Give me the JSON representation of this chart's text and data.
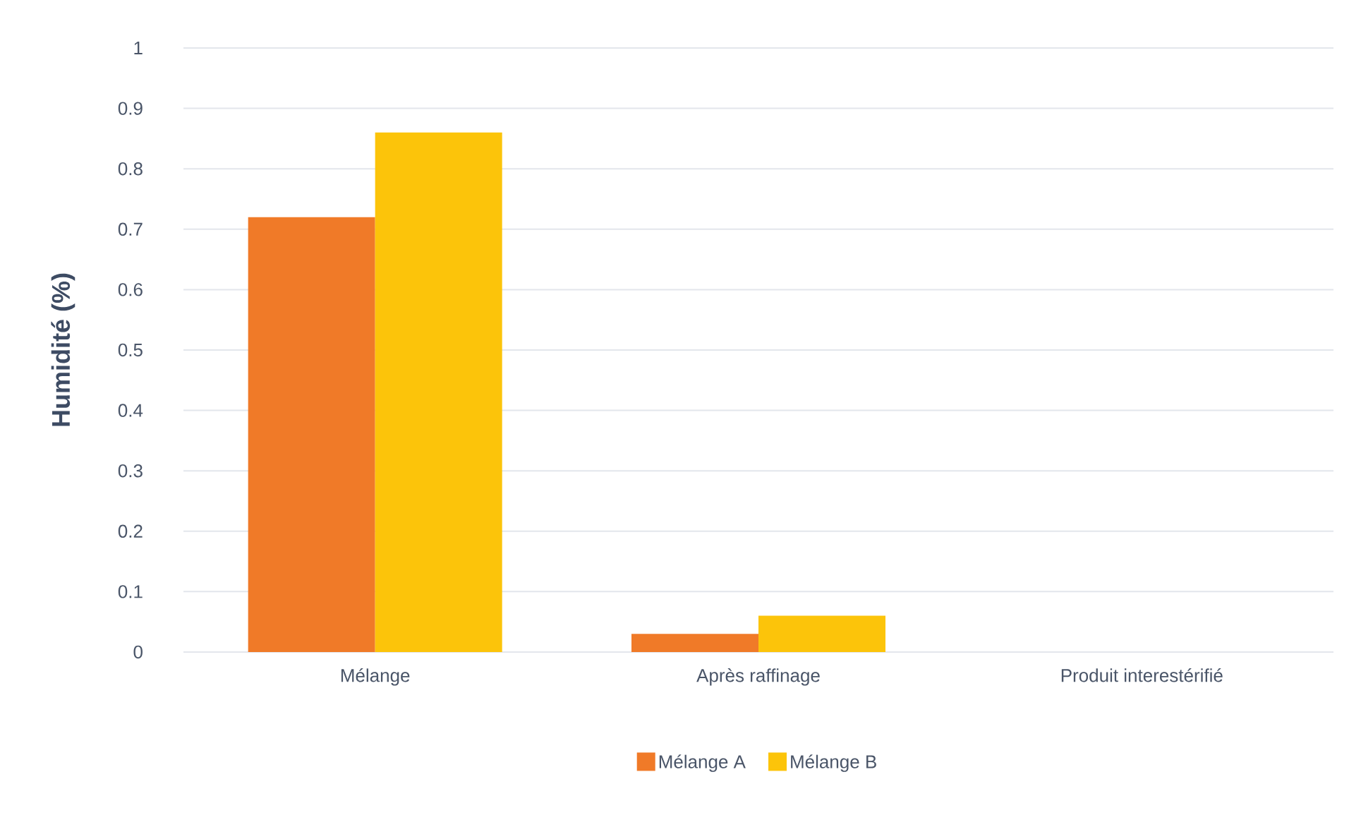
{
  "chart_data": {
    "type": "bar",
    "ylabel": "Humidité (%)",
    "categories": [
      "Mélange",
      "Après raffinage",
      "Produit interestérifié"
    ],
    "series": [
      {
        "name": "Mélange A",
        "color": "#f07a28",
        "values": [
          0.72,
          0.03,
          0
        ]
      },
      {
        "name": "Mélange B",
        "color": "#fcc40a",
        "values": [
          0.86,
          0.06,
          0
        ]
      }
    ],
    "ylim": [
      0,
      1
    ],
    "yticks": [
      0,
      0.1,
      0.2,
      0.3,
      0.4,
      0.5,
      0.6,
      0.7,
      0.8,
      0.9,
      1
    ],
    "grid": "y",
    "legend": "bottom"
  }
}
